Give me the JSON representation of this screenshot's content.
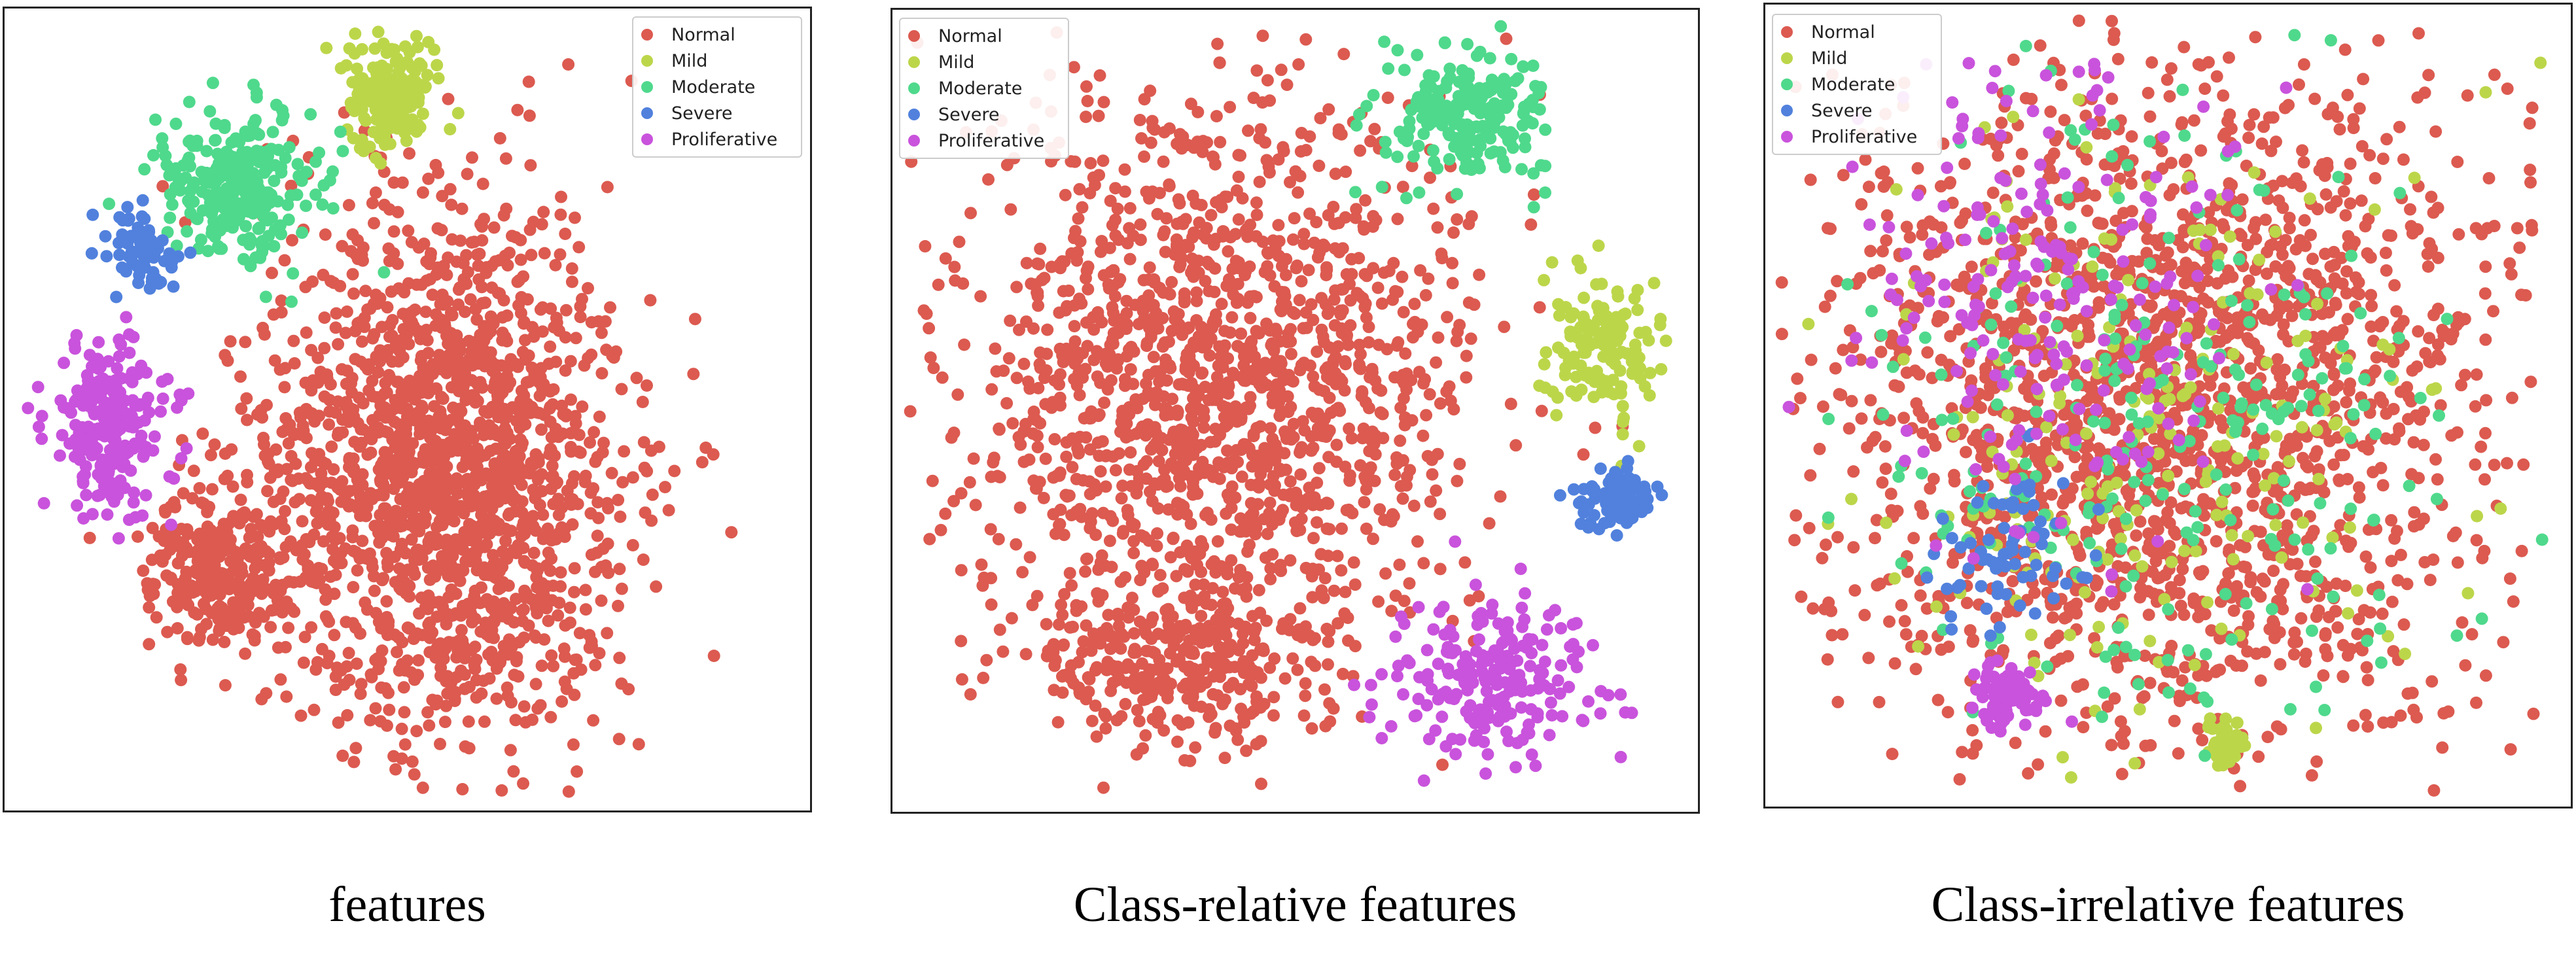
{
  "legend": {
    "items": [
      {
        "label": "Normal",
        "color": "#dc5a50"
      },
      {
        "label": "Mild",
        "color": "#bcd64a"
      },
      {
        "label": "Moderate",
        "color": "#4fd98c"
      },
      {
        "label": "Severe",
        "color": "#5181dd"
      },
      {
        "label": "Proliferative",
        "color": "#c953dc"
      }
    ]
  },
  "captions": {
    "panel1": "features",
    "panel2": "Class-relative features",
    "panel3": "Class-irrelative features"
  },
  "chart_data": [
    {
      "type": "scatter",
      "caption": "features",
      "axes": "hidden",
      "legend_position": "top-right",
      "series": [
        {
          "name": "Normal",
          "color": "#dc5a50",
          "clusters": [
            {
              "center": [
                0.55,
                0.58
              ],
              "spread": [
                0.22,
                0.34
              ],
              "count": 1700
            },
            {
              "center": [
                0.27,
                0.7
              ],
              "spread": [
                0.09,
                0.1
              ],
              "count": 300
            }
          ]
        },
        {
          "name": "Mild",
          "color": "#bcd64a",
          "clusters": [
            {
              "center": [
                0.48,
                0.11
              ],
              "spread": [
                0.06,
                0.07
              ],
              "count": 170
            }
          ]
        },
        {
          "name": "Moderate",
          "color": "#4fd98c",
          "clusters": [
            {
              "center": [
                0.29,
                0.22
              ],
              "spread": [
                0.1,
                0.1
              ],
              "count": 260
            }
          ]
        },
        {
          "name": "Severe",
          "color": "#5181dd",
          "clusters": [
            {
              "center": [
                0.17,
                0.3
              ],
              "spread": [
                0.04,
                0.05
              ],
              "count": 70
            }
          ]
        },
        {
          "name": "Proliferative",
          "color": "#c953dc",
          "clusters": [
            {
              "center": [
                0.13,
                0.52
              ],
              "spread": [
                0.08,
                0.11
              ],
              "count": 230
            }
          ]
        }
      ]
    },
    {
      "type": "scatter",
      "caption": "Class-relative features",
      "axes": "hidden",
      "legend_position": "top-left",
      "series": [
        {
          "name": "Normal",
          "color": "#dc5a50",
          "clusters": [
            {
              "center": [
                0.4,
                0.46
              ],
              "spread": [
                0.31,
                0.34
              ],
              "count": 1500
            },
            {
              "center": [
                0.35,
                0.82
              ],
              "spread": [
                0.18,
                0.09
              ],
              "count": 300
            }
          ]
        },
        {
          "name": "Mild",
          "color": "#bcd64a",
          "clusters": [
            {
              "center": [
                0.88,
                0.42
              ],
              "spread": [
                0.07,
                0.09
              ],
              "count": 140
            }
          ]
        },
        {
          "name": "Moderate",
          "color": "#4fd98c",
          "clusters": [
            {
              "center": [
                0.72,
                0.13
              ],
              "spread": [
                0.09,
                0.09
              ],
              "count": 220
            }
          ]
        },
        {
          "name": "Severe",
          "color": "#5181dd",
          "clusters": [
            {
              "center": [
                0.9,
                0.61
              ],
              "spread": [
                0.05,
                0.04
              ],
              "count": 90
            }
          ]
        },
        {
          "name": "Proliferative",
          "color": "#c953dc",
          "clusters": [
            {
              "center": [
                0.74,
                0.84
              ],
              "spread": [
                0.12,
                0.1
              ],
              "count": 220
            }
          ]
        }
      ]
    },
    {
      "type": "scatter",
      "caption": "Class-irrelative features",
      "axes": "hidden",
      "legend_position": "top-left",
      "series": [
        {
          "name": "Normal",
          "color": "#dc5a50",
          "clusters": [
            {
              "center": [
                0.5,
                0.5
              ],
              "spread": [
                0.42,
                0.44
              ],
              "count": 1900
            }
          ]
        },
        {
          "name": "Mild",
          "color": "#bcd64a",
          "clusters": [
            {
              "center": [
                0.5,
                0.55
              ],
              "spread": [
                0.38,
                0.38
              ],
              "count": 220
            },
            {
              "center": [
                0.57,
                0.92
              ],
              "spread": [
                0.03,
                0.03
              ],
              "count": 40
            }
          ]
        },
        {
          "name": "Moderate",
          "color": "#4fd98c",
          "clusters": [
            {
              "center": [
                0.5,
                0.52
              ],
              "spread": [
                0.38,
                0.38
              ],
              "count": 260
            }
          ]
        },
        {
          "name": "Severe",
          "color": "#5181dd",
          "clusters": [
            {
              "center": [
                0.3,
                0.68
              ],
              "spread": [
                0.1,
                0.12
              ],
              "count": 70
            }
          ]
        },
        {
          "name": "Proliferative",
          "color": "#c953dc",
          "clusters": [
            {
              "center": [
                0.34,
                0.36
              ],
              "spread": [
                0.24,
                0.3
              ],
              "count": 220
            },
            {
              "center": [
                0.3,
                0.86
              ],
              "spread": [
                0.05,
                0.04
              ],
              "count": 70
            }
          ]
        }
      ]
    }
  ]
}
